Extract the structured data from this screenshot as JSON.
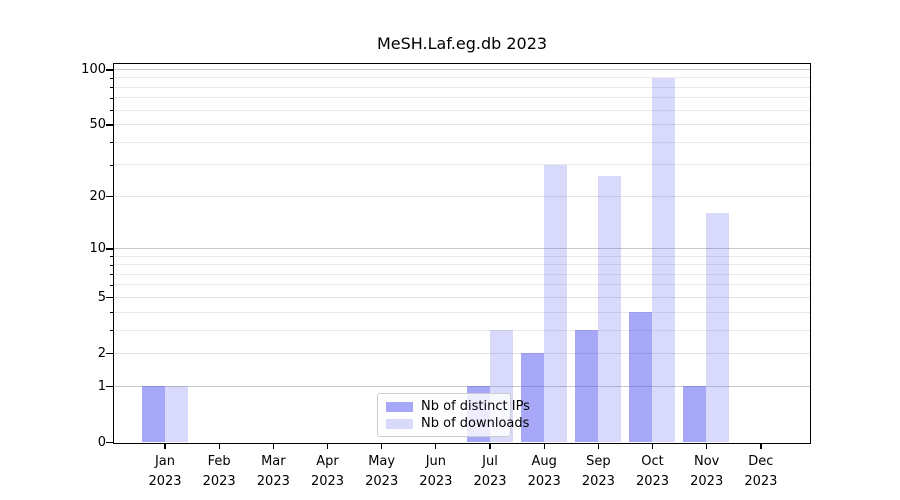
{
  "chart_data": {
    "type": "bar",
    "title": "MeSH.Laf.eg.db 2023",
    "categories": [
      {
        "month": "Jan",
        "year": "2023"
      },
      {
        "month": "Feb",
        "year": "2023"
      },
      {
        "month": "Mar",
        "year": "2023"
      },
      {
        "month": "Apr",
        "year": "2023"
      },
      {
        "month": "May",
        "year": "2023"
      },
      {
        "month": "Jun",
        "year": "2023"
      },
      {
        "month": "Jul",
        "year": "2023"
      },
      {
        "month": "Aug",
        "year": "2023"
      },
      {
        "month": "Sep",
        "year": "2023"
      },
      {
        "month": "Oct",
        "year": "2023"
      },
      {
        "month": "Nov",
        "year": "2023"
      },
      {
        "month": "Dec",
        "year": "2023"
      }
    ],
    "series": [
      {
        "name": "Nb of distinct IPs",
        "color": "rgba(80,80,240,0.50)",
        "values": [
          1,
          0,
          0,
          0,
          0,
          0,
          1,
          2,
          3,
          4,
          1,
          0
        ]
      },
      {
        "name": "Nb of downloads",
        "color": "rgba(80,80,240,0.22)",
        "values": [
          1,
          0,
          0,
          0,
          0,
          0,
          3,
          30,
          26,
          90,
          16,
          0
        ]
      }
    ],
    "yscale": "log1p",
    "ylim": [
      0,
      107
    ],
    "yticks_major": [
      0,
      1,
      2,
      5,
      10,
      20,
      50,
      100
    ],
    "yticks_minor": [
      3,
      4,
      6,
      7,
      8,
      9,
      30,
      40,
      60,
      70,
      80,
      90
    ],
    "decade_lines": [
      1,
      10,
      100
    ],
    "grid": true,
    "legend_position": "lower center",
    "colors": {
      "axis": "#000000",
      "grid_major": "#c9c9c9",
      "grid_minor": "#e9e9e9",
      "grid_mid": "#e3e3e3"
    }
  }
}
